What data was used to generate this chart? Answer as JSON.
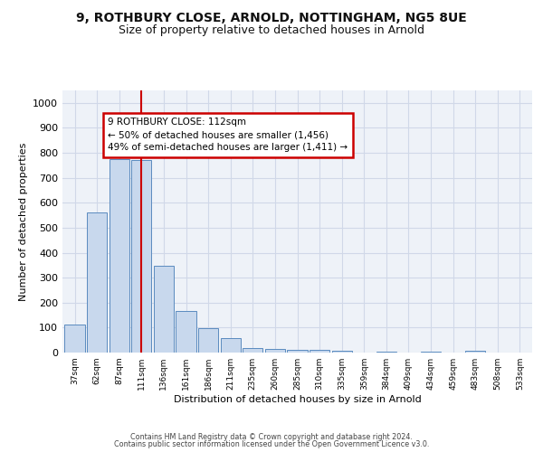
{
  "title_line1": "9, ROTHBURY CLOSE, ARNOLD, NOTTINGHAM, NG5 8UE",
  "title_line2": "Size of property relative to detached houses in Arnold",
  "xlabel": "Distribution of detached houses by size in Arnold",
  "ylabel": "Number of detached properties",
  "categories": [
    "37sqm",
    "62sqm",
    "87sqm",
    "111sqm",
    "136sqm",
    "161sqm",
    "186sqm",
    "211sqm",
    "235sqm",
    "260sqm",
    "285sqm",
    "310sqm",
    "335sqm",
    "359sqm",
    "384sqm",
    "409sqm",
    "434sqm",
    "459sqm",
    "483sqm",
    "508sqm",
    "533sqm"
  ],
  "values": [
    113,
    560,
    775,
    770,
    347,
    165,
    98,
    57,
    18,
    13,
    11,
    11,
    8,
    0,
    5,
    0,
    5,
    0,
    8,
    0,
    0
  ],
  "bar_color": "#c8d8ed",
  "bar_edge_color": "#5b8bbf",
  "vline_x_index": 3,
  "vline_color": "#cc0000",
  "annotation_text": "9 ROTHBURY CLOSE: 112sqm\n← 50% of detached houses are smaller (1,456)\n49% of semi-detached houses are larger (1,411) →",
  "annotation_box_color": "#ffffff",
  "annotation_box_edge_color": "#cc0000",
  "grid_color": "#d0d8e8",
  "background_color": "#eef2f8",
  "ylim": [
    0,
    1050
  ],
  "yticks": [
    0,
    100,
    200,
    300,
    400,
    500,
    600,
    700,
    800,
    900,
    1000
  ],
  "footer_line1": "Contains HM Land Registry data © Crown copyright and database right 2024.",
  "footer_line2": "Contains public sector information licensed under the Open Government Licence v3.0."
}
